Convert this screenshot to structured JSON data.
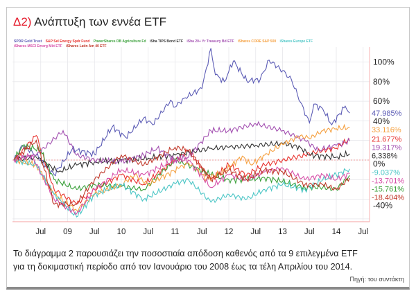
{
  "header": {
    "number": "Δ2)",
    "title": "Ανάπτυξη των εννέα ETF"
  },
  "caption": {
    "line1": "Το διάγραμμα 2 παρουσιάζει την ποσοστιαία απόδοση καθενός από τα 9 επιλεγμένα ETF",
    "line2": "για τη δοκιμαστική περίοδο από τον Ιανουάριο του 2008 έως τα τέλη  Απριλίου του 2014.",
    "source": "Πηγή: του συντάκτη"
  },
  "chart_data": {
    "type": "line",
    "ylabel_unit": "%",
    "ylim": [
      -60,
      120
    ],
    "xlim": [
      "2008-01",
      "2014-09"
    ],
    "grid": true,
    "legend_placement": "top",
    "y_ticks": [
      "100%",
      "80%",
      "60%",
      "40%",
      "0%",
      "-40%"
    ],
    "y_tick_values": [
      100,
      80,
      60,
      40,
      0,
      -40
    ],
    "x_ticks": [
      "Jul",
      "09",
      "Jul",
      "10",
      "Jul",
      "11",
      "Jul",
      "12",
      "Jul",
      "13",
      "Jul",
      "14",
      "Jul"
    ],
    "x_tick_dates": [
      "2008-07",
      "2009-01",
      "2009-07",
      "2010-01",
      "2010-07",
      "2011-01",
      "2011-07",
      "2012-01",
      "2012-07",
      "2013-01",
      "2013-07",
      "2014-01",
      "2014-07"
    ],
    "series": [
      {
        "name": "SPDR Gold Trust",
        "color": "#5b5bb5",
        "end_label": "47.985%",
        "points": [
          [
            "2008-01",
            0
          ],
          [
            "2008-03",
            15
          ],
          [
            "2008-06",
            5
          ],
          [
            "2008-10",
            -15
          ],
          [
            "2009-02",
            11
          ],
          [
            "2009-07",
            6
          ],
          [
            "2009-11",
            34
          ],
          [
            "2010-02",
            23
          ],
          [
            "2010-06",
            43
          ],
          [
            "2010-08",
            36
          ],
          [
            "2010-12",
            61
          ],
          [
            "2011-01",
            54
          ],
          [
            "2011-03",
            63
          ],
          [
            "2011-07",
            73
          ],
          [
            "2011-09",
            114
          ],
          [
            "2011-10",
            87
          ],
          [
            "2011-12",
            80
          ],
          [
            "2012-02",
            101
          ],
          [
            "2012-05",
            81
          ],
          [
            "2012-08",
            82
          ],
          [
            "2012-10",
            102
          ],
          [
            "2013-01",
            91
          ],
          [
            "2013-03",
            82
          ],
          [
            "2013-05",
            59
          ],
          [
            "2013-07",
            38
          ],
          [
            "2013-08",
            57
          ],
          [
            "2013-10",
            52
          ],
          [
            "2013-12",
            36
          ],
          [
            "2014-03",
            55
          ],
          [
            "2014-04",
            48
          ]
        ]
      },
      {
        "name": "S&P Sel Energy Spdr Fund",
        "color": "#e8322e",
        "end_label": "21.677%",
        "points": [
          [
            "2008-01",
            0
          ],
          [
            "2008-06",
            25
          ],
          [
            "2008-10",
            -30
          ],
          [
            "2009-03",
            -45
          ],
          [
            "2009-07",
            -30
          ],
          [
            "2010-01",
            -15
          ],
          [
            "2010-06",
            -25
          ],
          [
            "2011-01",
            0
          ],
          [
            "2011-04",
            10
          ],
          [
            "2011-09",
            -20
          ],
          [
            "2012-01",
            -5
          ],
          [
            "2012-05",
            -15
          ],
          [
            "2012-09",
            -5
          ],
          [
            "2013-01",
            0
          ],
          [
            "2013-06",
            5
          ],
          [
            "2013-10",
            10
          ],
          [
            "2014-01",
            12
          ],
          [
            "2014-04",
            21.677
          ]
        ]
      },
      {
        "name": "PowerShares DB Agriculture Fd",
        "color": "#3aa03a",
        "end_label": "-15.761%",
        "points": [
          [
            "2008-01",
            0
          ],
          [
            "2008-03",
            15
          ],
          [
            "2008-07",
            10
          ],
          [
            "2008-10",
            -20
          ],
          [
            "2009-03",
            -30
          ],
          [
            "2009-07",
            -25
          ],
          [
            "2010-01",
            -27
          ],
          [
            "2010-06",
            -30
          ],
          [
            "2011-01",
            0
          ],
          [
            "2011-04",
            -5
          ],
          [
            "2011-09",
            -15
          ],
          [
            "2012-01",
            -20
          ],
          [
            "2012-05",
            -20
          ],
          [
            "2012-09",
            -18
          ],
          [
            "2013-01",
            -22
          ],
          [
            "2013-06",
            -28
          ],
          [
            "2013-10",
            -28
          ],
          [
            "2014-01",
            -30
          ],
          [
            "2014-04",
            -15.761
          ]
        ]
      },
      {
        "name": "iSha TIPS Bond ETF",
        "color": "#333333",
        "end_label": "6,338%",
        "points": [
          [
            "2008-01",
            0
          ],
          [
            "2008-06",
            3
          ],
          [
            "2008-11",
            -12
          ],
          [
            "2009-03",
            -5
          ],
          [
            "2009-07",
            -2
          ],
          [
            "2010-01",
            0
          ],
          [
            "2010-07",
            2
          ],
          [
            "2011-01",
            5
          ],
          [
            "2011-09",
            12
          ],
          [
            "2012-01",
            13
          ],
          [
            "2012-07",
            15
          ],
          [
            "2013-01",
            17
          ],
          [
            "2013-05",
            13
          ],
          [
            "2013-07",
            5
          ],
          [
            "2014-01",
            3
          ],
          [
            "2014-04",
            6.338
          ]
        ]
      },
      {
        "name": "iSha 20+ Yr Treasury Bd ETF",
        "color": "#a24fb0",
        "end_label": "19.317%",
        "points": [
          [
            "2008-01",
            0
          ],
          [
            "2008-06",
            5
          ],
          [
            "2008-12",
            30
          ],
          [
            "2009-03",
            5
          ],
          [
            "2009-07",
            0
          ],
          [
            "2010-01",
            -2
          ],
          [
            "2010-06",
            5
          ],
          [
            "2010-09",
            12
          ],
          [
            "2011-01",
            0
          ],
          [
            "2011-04",
            3
          ],
          [
            "2011-09",
            30
          ],
          [
            "2012-01",
            30
          ],
          [
            "2012-07",
            37
          ],
          [
            "2013-01",
            30
          ],
          [
            "2013-06",
            20
          ],
          [
            "2013-09",
            10
          ],
          [
            "2014-01",
            15
          ],
          [
            "2014-04",
            19.317
          ]
        ]
      },
      {
        "name": "iShares CORE S&P 500",
        "color": "#f5a040",
        "end_label": "33.116%",
        "points": [
          [
            "2008-01",
            0
          ],
          [
            "2008-06",
            -5
          ],
          [
            "2008-10",
            -35
          ],
          [
            "2009-03",
            -51
          ],
          [
            "2009-07",
            -35
          ],
          [
            "2010-01",
            -25
          ],
          [
            "2010-04",
            -15
          ],
          [
            "2010-07",
            -25
          ],
          [
            "2011-02",
            -8
          ],
          [
            "2011-04",
            -3
          ],
          [
            "2011-08",
            -19
          ],
          [
            "2011-12",
            -12
          ],
          [
            "2012-04",
            4
          ],
          [
            "2012-06",
            -5
          ],
          [
            "2012-09",
            5
          ],
          [
            "2013-01",
            16
          ],
          [
            "2013-05",
            25
          ],
          [
            "2013-07",
            22
          ],
          [
            "2013-10",
            30
          ],
          [
            "2014-01",
            32
          ],
          [
            "2014-04",
            33.116
          ]
        ]
      },
      {
        "name": "iShares Europe ETF",
        "color": "#4cc6c6",
        "end_label": "-9.037%",
        "points": [
          [
            "2008-01",
            0
          ],
          [
            "2008-06",
            -5
          ],
          [
            "2008-10",
            -35
          ],
          [
            "2009-03",
            -58
          ],
          [
            "2009-07",
            -35
          ],
          [
            "2010-01",
            -25
          ],
          [
            "2010-06",
            -40
          ],
          [
            "2011-01",
            -24
          ],
          [
            "2011-04",
            -20
          ],
          [
            "2011-09",
            -43
          ],
          [
            "2012-01",
            -35
          ],
          [
            "2012-05",
            -40
          ],
          [
            "2012-09",
            -30
          ],
          [
            "2013-01",
            -25
          ],
          [
            "2013-06",
            -30
          ],
          [
            "2013-10",
            -20
          ],
          [
            "2014-01",
            -15
          ],
          [
            "2014-04",
            -9.037
          ]
        ]
      },
      {
        "name": "iShares MSCI Emerg Mkt ETF",
        "color": "#d64fa8",
        "end_label": "-13.701%",
        "points": [
          [
            "2008-01",
            0
          ],
          [
            "2008-05",
            5
          ],
          [
            "2008-10",
            -40
          ],
          [
            "2009-03",
            -55
          ],
          [
            "2009-07",
            -30
          ],
          [
            "2010-01",
            -10
          ],
          [
            "2010-06",
            -15
          ],
          [
            "2011-01",
            0
          ],
          [
            "2011-04",
            0
          ],
          [
            "2011-09",
            -28
          ],
          [
            "2012-01",
            -15
          ],
          [
            "2012-05",
            -20
          ],
          [
            "2012-09",
            -12
          ],
          [
            "2013-01",
            -8
          ],
          [
            "2013-06",
            -20
          ],
          [
            "2013-10",
            -15
          ],
          [
            "2014-01",
            -20
          ],
          [
            "2014-04",
            -13.701
          ]
        ]
      },
      {
        "name": "iShares Latin Am 40 ETF",
        "color": "#c0392b",
        "end_label": "-18.404%",
        "points": [
          [
            "2008-01",
            0
          ],
          [
            "2008-06",
            20
          ],
          [
            "2008-10",
            -45
          ],
          [
            "2009-03",
            -45
          ],
          [
            "2009-07",
            -20
          ],
          [
            "2010-01",
            5
          ],
          [
            "2010-06",
            -5
          ],
          [
            "2011-01",
            13
          ],
          [
            "2011-04",
            10
          ],
          [
            "2011-09",
            -20
          ],
          [
            "2012-01",
            -10
          ],
          [
            "2012-05",
            -20
          ],
          [
            "2012-09",
            -10
          ],
          [
            "2013-01",
            -12
          ],
          [
            "2013-06",
            -25
          ],
          [
            "2013-10",
            -25
          ],
          [
            "2014-01",
            -30
          ],
          [
            "2014-04",
            -18.404
          ]
        ]
      }
    ]
  }
}
